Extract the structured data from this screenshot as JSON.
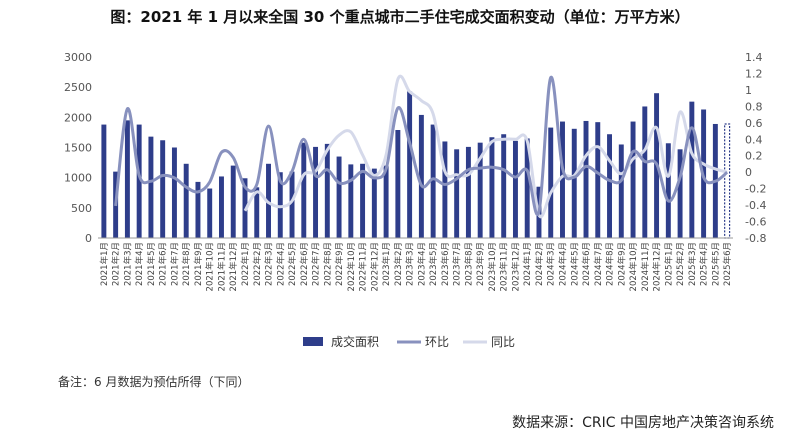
{
  "title": "图：2021 年 1 月以来全国 30 个重点城市二手住宅成交面积变动（单位：万平方米）",
  "note": "备注：6 月数据为预估所得（下同）",
  "source": "数据来源：CRIC 中国房地产决策咨询系统",
  "colors": {
    "bar": "#2E3D8A",
    "huanbi": "#8891BE",
    "tongbi": "#D5D9EA",
    "axis": "#999999"
  },
  "chart_data": {
    "type": "bar",
    "categories": [
      "2021年1月",
      "2021年2月",
      "2021年3月",
      "2021年4月",
      "2021年5月",
      "2021年6月",
      "2021年7月",
      "2021年8月",
      "2021年9月",
      "2021年10月",
      "2021年11月",
      "2021年12月",
      "2022年1月",
      "2022年2月",
      "2022年3月",
      "2022年4月",
      "2022年5月",
      "2022年6月",
      "2022年7月",
      "2022年8月",
      "2022年9月",
      "2022年10月",
      "2022年11月",
      "2022年12月",
      "2023年1月",
      "2023年2月",
      "2023年3月",
      "2023年4月",
      "2023年5月",
      "2023年6月",
      "2023年7月",
      "2023年8月",
      "2023年9月",
      "2023年10月",
      "2023年11月",
      "2023年12月",
      "2024年1月",
      "2024年2月",
      "2024年3月",
      "2024年4月",
      "2024年5月",
      "2024年6月",
      "2024年7月",
      "2024年8月",
      "2024年9月",
      "2024年10月",
      "2024年11月",
      "2024年12月",
      "2025年1月",
      "2025年2月",
      "2025年3月",
      "2025年4月",
      "2025年5月",
      "2025年6月"
    ],
    "series": [
      {
        "name": "成交面积",
        "type": "bar",
        "axis": "left",
        "values": [
          1880,
          1100,
          1950,
          1880,
          1680,
          1620,
          1500,
          1230,
          930,
          820,
          1020,
          1200,
          990,
          840,
          1230,
          1090,
          1100,
          1580,
          1510,
          1560,
          1350,
          1220,
          1230,
          1150,
          1200,
          1790,
          2430,
          2040,
          1880,
          1600,
          1470,
          1510,
          1580,
          1670,
          1720,
          1610,
          1650,
          850,
          1830,
          1930,
          1810,
          1940,
          1920,
          1720,
          1550,
          1930,
          2180,
          2400,
          1570,
          1470,
          2260,
          2130,
          1890,
          1890
        ],
        "estimated_last": true
      },
      {
        "name": "环比",
        "type": "line",
        "axis": "right",
        "values": [
          null,
          -0.41,
          0.77,
          -0.04,
          -0.11,
          -0.04,
          -0.07,
          -0.18,
          -0.24,
          -0.12,
          0.24,
          0.18,
          -0.18,
          -0.15,
          0.56,
          -0.11,
          0.01,
          0.4,
          -0.04,
          0.03,
          -0.13,
          -0.1,
          0.01,
          -0.07,
          0.04,
          0.78,
          0.36,
          -0.16,
          -0.08,
          -0.15,
          -0.08,
          0.03,
          0.05,
          0.06,
          0.03,
          -0.06,
          0.02,
          -0.48,
          1.15,
          0.05,
          -0.06,
          0.07,
          -0.01,
          -0.1,
          -0.1,
          0.25,
          0.13,
          0.1,
          -0.35,
          -0.06,
          0.54,
          -0.06,
          -0.11,
          0.0
        ]
      },
      {
        "name": "同比",
        "type": "line",
        "axis": "right",
        "values": [
          null,
          null,
          null,
          null,
          null,
          null,
          null,
          null,
          null,
          null,
          null,
          null,
          -0.47,
          -0.24,
          -0.37,
          -0.42,
          -0.35,
          -0.03,
          0.01,
          0.27,
          0.45,
          0.49,
          0.21,
          -0.04,
          0.21,
          1.13,
          0.98,
          0.87,
          0.71,
          0.01,
          -0.03,
          -0.03,
          0.17,
          0.37,
          0.4,
          0.4,
          0.38,
          -0.52,
          -0.25,
          -0.05,
          -0.04,
          0.2,
          0.31,
          0.14,
          -0.02,
          0.16,
          0.27,
          0.54,
          -0.05,
          0.73,
          0.23,
          0.1,
          0.04,
          0.0
        ]
      }
    ],
    "left_axis": {
      "min": 0,
      "max": 3000,
      "ticks": [
        "0",
        "500",
        "1000",
        "1500",
        "2000",
        "2500",
        "3000"
      ]
    },
    "right_axis": {
      "min": -0.8,
      "max": 1.4,
      "ticks": [
        "-0.8",
        "-0.6",
        "-0.4",
        "-0.2",
        "0",
        "0.2",
        "0.4",
        "0.6",
        "0.8",
        "1",
        "1.2",
        "1.4"
      ]
    },
    "legend_position": "bottom"
  }
}
